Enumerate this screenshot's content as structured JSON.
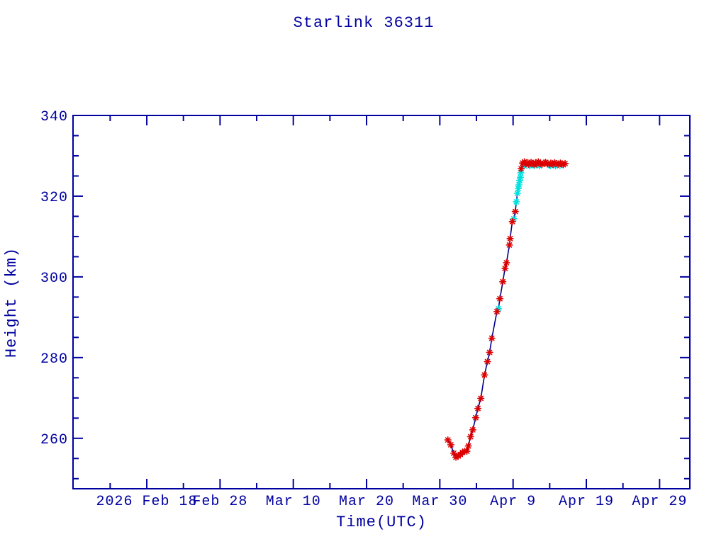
{
  "chart_data": {
    "type": "line",
    "title": "Starlink 36311",
    "xlabel": "Time(UTC)",
    "ylabel": "Height (km)",
    "legend": "none",
    "grid": "off",
    "colors": {
      "axis_and_text": "#0000A0",
      "line": "#00008B",
      "primary_points": "#DC0000",
      "secondary_points": "#00E0E0",
      "background": "#FFFFFF"
    },
    "x_axis": {
      "epoch_label": "2026 Feb 18",
      "units": "days since 2026 Feb 18",
      "range_days": [
        -10.07,
        74.13
      ],
      "major_ticks": [
        {
          "day": 0,
          "label": "2026 Feb 18"
        },
        {
          "day": 10,
          "label": "Feb 28"
        },
        {
          "day": 20,
          "label": "Mar 10"
        },
        {
          "day": 30,
          "label": "Mar 20"
        },
        {
          "day": 40,
          "label": "Mar 30"
        },
        {
          "day": 50,
          "label": "Apr 9"
        },
        {
          "day": 60,
          "label": "Apr 19"
        },
        {
          "day": 70,
          "label": "Apr 29"
        }
      ],
      "minor_tick_days": [
        -5,
        5,
        15,
        25,
        35,
        45,
        55,
        65
      ]
    },
    "y_axis": {
      "range": [
        247.5,
        340
      ],
      "major_ticks": [
        260,
        280,
        300,
        320,
        340
      ],
      "minor_ticks": [
        250,
        255,
        265,
        270,
        275,
        285,
        290,
        295,
        305,
        310,
        315,
        325,
        330,
        335
      ]
    },
    "series": {
      "description": "Satellite height vs time; red asterisks = primary ephemeris points, cyan asterisks = secondary points, navy line connects points. Height dips from ~259.6 km (Mar 31) to ~255.3 km (Apr 1), climbs steeply to ~328 km by Apr 10, then stays flat at ~328 km through Apr 16.",
      "red_points": [
        [
          41.1,
          259.6
        ],
        [
          41.5,
          258.4
        ],
        [
          41.9,
          256.3
        ],
        [
          42.2,
          255.3
        ],
        [
          42.5,
          255.6
        ],
        [
          42.8,
          256.0
        ],
        [
          43.1,
          256.5
        ],
        [
          43.4,
          256.8
        ],
        [
          43.7,
          256.8
        ],
        [
          43.9,
          258.1
        ],
        [
          44.2,
          260.4
        ],
        [
          44.5,
          262.1
        ],
        [
          44.9,
          265.1
        ],
        [
          45.2,
          267.4
        ],
        [
          45.6,
          269.9
        ],
        [
          46.1,
          275.7
        ],
        [
          46.5,
          279.0
        ],
        [
          46.8,
          281.3
        ],
        [
          47.1,
          284.8
        ],
        [
          47.8,
          291.4
        ],
        [
          48.2,
          294.6
        ],
        [
          48.6,
          298.8
        ],
        [
          48.9,
          302.1
        ],
        [
          49.1,
          303.5
        ],
        [
          49.5,
          307.9
        ],
        [
          49.6,
          309.5
        ],
        [
          49.9,
          313.7
        ],
        [
          50.3,
          316.2
        ],
        [
          51.1,
          326.8
        ],
        [
          51.3,
          328.2
        ],
        [
          51.55,
          328.5
        ],
        [
          51.75,
          328.0
        ],
        [
          51.95,
          328.3
        ],
        [
          52.15,
          327.9
        ],
        [
          52.45,
          328.4
        ],
        [
          52.65,
          328.1
        ],
        [
          52.85,
          327.8
        ],
        [
          53.05,
          328.3
        ],
        [
          53.25,
          328.0
        ],
        [
          53.45,
          328.5
        ],
        [
          53.75,
          328.1
        ],
        [
          53.95,
          327.9
        ],
        [
          54.25,
          328.2
        ],
        [
          54.45,
          328.4
        ],
        [
          54.65,
          328.0
        ],
        [
          54.95,
          327.8
        ],
        [
          55.15,
          328.2
        ],
        [
          55.45,
          327.9
        ],
        [
          55.65,
          328.3
        ],
        [
          55.85,
          328.1
        ],
        [
          56.15,
          327.9
        ],
        [
          56.45,
          328.2
        ],
        [
          56.65,
          328.0
        ],
        [
          56.85,
          327.8
        ],
        [
          57.1,
          328.1
        ]
      ],
      "cyan_points": [
        [
          48.0,
          292.1
        ],
        [
          50.1,
          314.4
        ],
        [
          50.45,
          318.6
        ],
        [
          50.6,
          320.7
        ],
        [
          50.7,
          321.9
        ],
        [
          50.8,
          322.8
        ],
        [
          50.9,
          323.9
        ],
        [
          51.0,
          324.7
        ],
        [
          51.05,
          325.8
        ],
        [
          51.5,
          327.5
        ],
        [
          52.3,
          327.5
        ],
        [
          52.9,
          327.6
        ],
        [
          53.6,
          327.5
        ],
        [
          55.1,
          327.6
        ],
        [
          55.8,
          327.5
        ],
        [
          56.4,
          327.6
        ]
      ]
    }
  }
}
